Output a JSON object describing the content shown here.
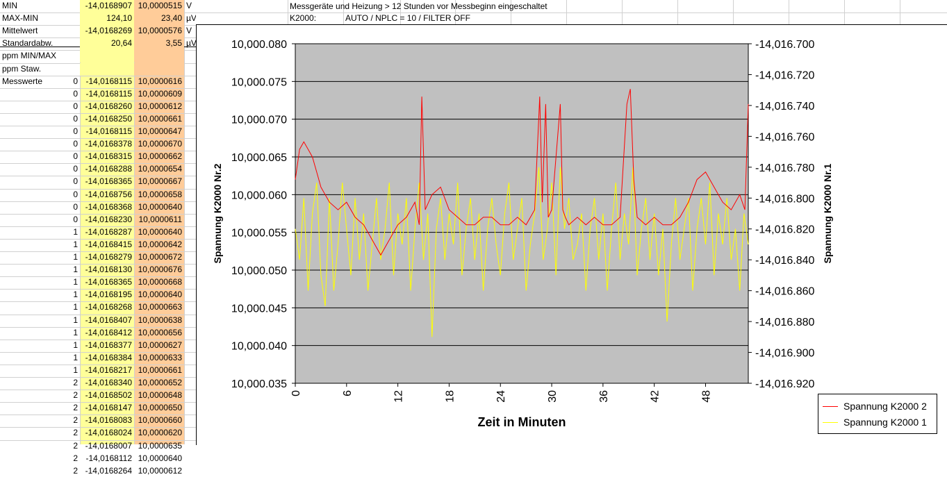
{
  "sheet": {
    "stats": [
      {
        "label": "MIN",
        "index": "",
        "col1": "-14,0168907",
        "col2": "10,0000515",
        "unit": "V"
      },
      {
        "label": "MAX-MIN",
        "index": "",
        "col1": "124,10",
        "col2": "23,40",
        "unit": "µV"
      },
      {
        "label": "Mittelwert",
        "index": "",
        "col1": "-14,0168269",
        "col2": "10,0000576",
        "unit": "V"
      },
      {
        "label": "Standardabw.",
        "index": "",
        "col1": "20,64",
        "col2": "3,55",
        "unit": "µV"
      },
      {
        "label": "ppm MIN/MAX",
        "index": "",
        "col1": "",
        "col2": "",
        "unit": ""
      },
      {
        "label": "ppm Staw.",
        "index": "",
        "col1": "",
        "col2": "",
        "unit": ""
      }
    ],
    "measure_label": "Messwerte",
    "rows": [
      {
        "index": "0",
        "col1": "-14,0168115",
        "col2": "10,0000616"
      },
      {
        "index": "0",
        "col1": "-14,0168115",
        "col2": "10,0000609"
      },
      {
        "index": "0",
        "col1": "-14,0168260",
        "col2": "10,0000612"
      },
      {
        "index": "0",
        "col1": "-14,0168250",
        "col2": "10,0000661"
      },
      {
        "index": "0",
        "col1": "-14,0168115",
        "col2": "10,0000647"
      },
      {
        "index": "0",
        "col1": "-14,0168378",
        "col2": "10,0000670"
      },
      {
        "index": "0",
        "col1": "-14,0168315",
        "col2": "10,0000662"
      },
      {
        "index": "0",
        "col1": "-14,0168288",
        "col2": "10,0000654"
      },
      {
        "index": "0",
        "col1": "-14,0168365",
        "col2": "10,0000667"
      },
      {
        "index": "0",
        "col1": "-14,0168756",
        "col2": "10,0000658"
      },
      {
        "index": "0",
        "col1": "-14,0168368",
        "col2": "10,0000640"
      },
      {
        "index": "0",
        "col1": "-14,0168230",
        "col2": "10,0000611"
      },
      {
        "index": "1",
        "col1": "-14,0168287",
        "col2": "10,0000640"
      },
      {
        "index": "1",
        "col1": "-14,0168415",
        "col2": "10,0000642"
      },
      {
        "index": "1",
        "col1": "-14,0168279",
        "col2": "10,0000672"
      },
      {
        "index": "1",
        "col1": "-14,0168130",
        "col2": "10,0000676"
      },
      {
        "index": "1",
        "col1": "-14,0168365",
        "col2": "10,0000668"
      },
      {
        "index": "1",
        "col1": "-14,0168195",
        "col2": "10,0000640"
      },
      {
        "index": "1",
        "col1": "-14,0168268",
        "col2": "10,0000663"
      },
      {
        "index": "1",
        "col1": "-14,0168407",
        "col2": "10,0000638"
      },
      {
        "index": "1",
        "col1": "-14,0168412",
        "col2": "10,0000656"
      },
      {
        "index": "1",
        "col1": "-14,0168377",
        "col2": "10,0000627"
      },
      {
        "index": "1",
        "col1": "-14,0168384",
        "col2": "10,0000633"
      },
      {
        "index": "1",
        "col1": "-14,0168217",
        "col2": "10,0000661"
      },
      {
        "index": "2",
        "col1": "-14,0168340",
        "col2": "10,0000652"
      },
      {
        "index": "2",
        "col1": "-14,0168502",
        "col2": "10,0000648"
      },
      {
        "index": "2",
        "col1": "-14,0168147",
        "col2": "10,0000650"
      },
      {
        "index": "2",
        "col1": "-14,0168083",
        "col2": "10,0000660"
      },
      {
        "index": "2",
        "col1": "-14,0168024",
        "col2": "10,0000620"
      },
      {
        "index": "2",
        "col1": "-14,0168007",
        "col2": "10,0000635"
      },
      {
        "index": "2",
        "col1": "-14,0168112",
        "col2": "10,0000640"
      },
      {
        "index": "2",
        "col1": "-14,0168264",
        "col2": "10,0000612"
      }
    ],
    "notes": {
      "line1": "Messgeräte und Heizung > 12 Stunden vor Messbeginn eingeschaltet",
      "k_label": "K2000:",
      "k_value": "AUTO / NPLC = 10 / FILTER OFF"
    },
    "colors": {
      "yellow_fill": "#ffff99",
      "orange_fill": "#ffcc99",
      "grid": "#d0d0d0"
    }
  },
  "chart_data": {
    "type": "line",
    "xlabel": "Zeit in Minuten",
    "ylabel_left": "Spannung K2000 Nr.2",
    "ylabel_right": "Spannung K2000 Nr.1",
    "x_ticks": [
      "0",
      "6",
      "12",
      "18",
      "24",
      "30",
      "36",
      "42",
      "48"
    ],
    "xlim": [
      0,
      53
    ],
    "y_left_ticks": [
      "10,000.080",
      "10,000.075",
      "10,000.070",
      "10,000.065",
      "10,000.060",
      "10,000.055",
      "10,000.050",
      "10,000.045",
      "10,000.040",
      "10,000.035"
    ],
    "ylim_left": [
      10000.035,
      10000.08
    ],
    "y_right_ticks": [
      "-14,016.700",
      "-14,016.720",
      "-14,016.740",
      "-14,016.760",
      "-14,016.780",
      "-14,016.800",
      "-14,016.820",
      "-14,016.840",
      "-14,016.860",
      "-14,016.880",
      "-14,016.900",
      "-14,016.920"
    ],
    "ylim_right": [
      -14016.92,
      -14016.7
    ],
    "plot_bg": "#c0c0c0",
    "gridlines": "horizontal",
    "legend_position": "bottom-right",
    "series": [
      {
        "name": "Spannung K2000 2",
        "color": "#ff0000",
        "axis": "left",
        "x": [
          0,
          0.5,
          1,
          1.5,
          2,
          2.5,
          3,
          4,
          5,
          6,
          7,
          8,
          9,
          10,
          11,
          12,
          13,
          14,
          14.5,
          14.8,
          15.2,
          16,
          17,
          18,
          19,
          20,
          21,
          22,
          23,
          24,
          25,
          26,
          27,
          28,
          28.6,
          28.9,
          29.3,
          29.6,
          30,
          31,
          31.3,
          31.6,
          32,
          33,
          34,
          35,
          36,
          37,
          38,
          38.8,
          39.2,
          39.6,
          40,
          41,
          42,
          43,
          44,
          45,
          46,
          47,
          48,
          49,
          50,
          51,
          52,
          52.6,
          53
        ],
        "y": [
          10000.062,
          10000.066,
          10000.067,
          10000.066,
          10000.065,
          10000.063,
          10000.061,
          10000.059,
          10000.058,
          10000.059,
          10000.057,
          10000.056,
          10000.054,
          10000.052,
          10000.054,
          10000.056,
          10000.057,
          10000.059,
          10000.056,
          10000.073,
          10000.058,
          10000.06,
          10000.061,
          10000.058,
          10000.057,
          10000.056,
          10000.056,
          10000.057,
          10000.057,
          10000.056,
          10000.056,
          10000.057,
          10000.056,
          10000.058,
          10000.073,
          10000.059,
          10000.072,
          10000.057,
          10000.058,
          10000.072,
          10000.058,
          10000.057,
          10000.056,
          10000.057,
          10000.056,
          10000.057,
          10000.056,
          10000.056,
          10000.057,
          10000.072,
          10000.074,
          10000.062,
          10000.057,
          10000.056,
          10000.057,
          10000.056,
          10000.056,
          10000.057,
          10000.059,
          10000.062,
          10000.063,
          10000.061,
          10000.059,
          10000.058,
          10000.06,
          10000.058,
          10000.072
        ]
      },
      {
        "name": "Spannung K2000 1",
        "color": "#ffff00",
        "axis": "right",
        "x": [
          0,
          0.5,
          1,
          1.5,
          2,
          2.5,
          3,
          3.5,
          4,
          4.5,
          5,
          5.5,
          6,
          6.5,
          7,
          7.5,
          8,
          8.5,
          9,
          9.5,
          10,
          10.5,
          11,
          11.5,
          12,
          12.5,
          13,
          13.5,
          14,
          14.5,
          15,
          15.5,
          16,
          16.5,
          17,
          17.5,
          18,
          18.5,
          19,
          19.5,
          20,
          20.5,
          21,
          21.5,
          22,
          22.5,
          23,
          23.5,
          24,
          24.5,
          25,
          25.5,
          26,
          26.5,
          27,
          27.5,
          28,
          28.5,
          29,
          29.5,
          30,
          30.5,
          31,
          31.5,
          32,
          32.5,
          33,
          33.5,
          34,
          34.5,
          35,
          35.5,
          36,
          36.5,
          37,
          37.5,
          38,
          38.5,
          39,
          39.5,
          40,
          40.5,
          41,
          41.5,
          42,
          42.5,
          43,
          43.5,
          44,
          44.5,
          45,
          45.5,
          46,
          46.5,
          47,
          47.5,
          48,
          48.5,
          49,
          49.5,
          50,
          50.5,
          51,
          51.5,
          52,
          52.5,
          53
        ],
        "y": [
          -14016.82,
          -14016.84,
          -14016.8,
          -14016.86,
          -14016.81,
          -14016.79,
          -14016.85,
          -14016.87,
          -14016.8,
          -14016.86,
          -14016.83,
          -14016.79,
          -14016.82,
          -14016.85,
          -14016.8,
          -14016.84,
          -14016.81,
          -14016.86,
          -14016.83,
          -14016.8,
          -14016.84,
          -14016.82,
          -14016.79,
          -14016.85,
          -14016.81,
          -14016.83,
          -14016.8,
          -14016.86,
          -14016.82,
          -14016.79,
          -14016.84,
          -14016.81,
          -14016.89,
          -14016.82,
          -14016.8,
          -14016.84,
          -14016.81,
          -14016.83,
          -14016.79,
          -14016.85,
          -14016.82,
          -14016.8,
          -14016.84,
          -14016.81,
          -14016.86,
          -14016.82,
          -14016.8,
          -14016.83,
          -14016.85,
          -14016.81,
          -14016.79,
          -14016.84,
          -14016.82,
          -14016.8,
          -14016.86,
          -14016.83,
          -14016.81,
          -14016.78,
          -14016.84,
          -14016.82,
          -14016.79,
          -14016.85,
          -14016.78,
          -14016.82,
          -14016.8,
          -14016.84,
          -14016.83,
          -14016.81,
          -14016.86,
          -14016.82,
          -14016.8,
          -14016.84,
          -14016.81,
          -14016.86,
          -14016.82,
          -14016.79,
          -14016.84,
          -14016.81,
          -14016.83,
          -14016.78,
          -14016.85,
          -14016.82,
          -14016.8,
          -14016.84,
          -14016.81,
          -14016.85,
          -14016.82,
          -14016.88,
          -14016.83,
          -14016.8,
          -14016.84,
          -14016.82,
          -14016.8,
          -14016.86,
          -14016.82,
          -14016.8,
          -14016.83,
          -14016.79,
          -14016.85,
          -14016.81,
          -14016.83,
          -14016.8,
          -14016.84,
          -14016.82,
          -14016.86,
          -14016.81,
          -14016.83
        ]
      }
    ]
  }
}
